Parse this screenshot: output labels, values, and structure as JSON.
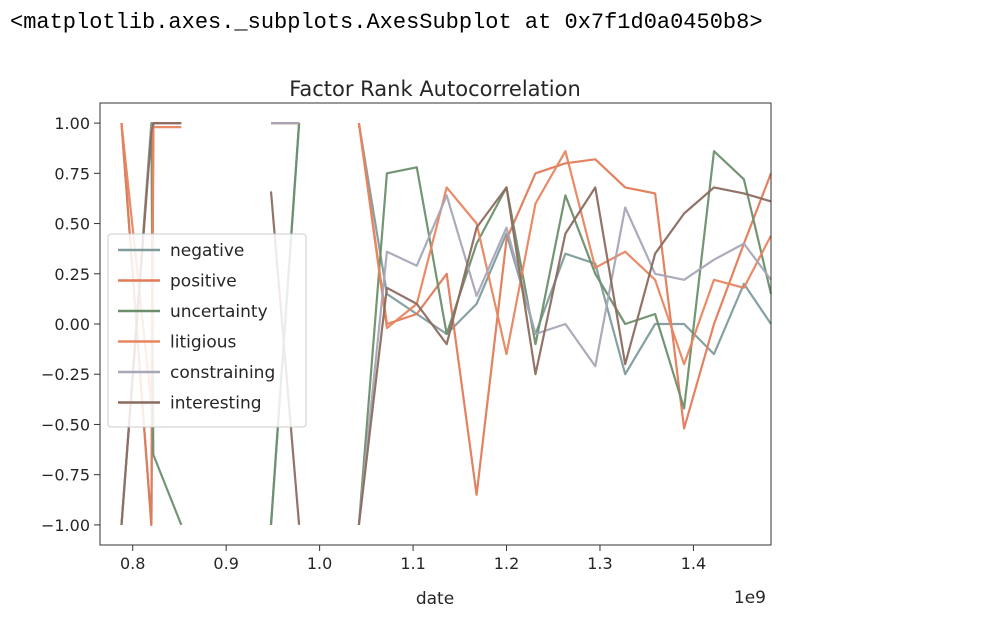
{
  "repr_text": "<matplotlib.axes._subplots.AxesSubplot at 0x7f1d0a0450b8>",
  "chart_data": {
    "type": "line",
    "title": "Factor Rank Autocorrelation",
    "xlabel": "date",
    "ylabel": "",
    "x_offset_label": "1e9",
    "xlim": [
      0.765,
      1.483
    ],
    "ylim": [
      -1.1,
      1.1
    ],
    "xticks": [
      0.8,
      0.9,
      1.0,
      1.1,
      1.2,
      1.3,
      1.4
    ],
    "xtick_labels": [
      "0.8",
      "0.9",
      "1.0",
      "1.1",
      "1.2",
      "1.3",
      "1.4"
    ],
    "yticks": [
      1.0,
      0.75,
      0.5,
      0.25,
      0.0,
      -0.25,
      -0.5,
      -0.75,
      -1.0
    ],
    "ytick_labels": [
      "1.00",
      "0.75",
      "0.50",
      "0.25",
      "0.00",
      "−0.25",
      "−0.50",
      "−0.75",
      "−1.00"
    ],
    "legend_position": "center-left",
    "grid": false,
    "series": [
      {
        "name": "negative",
        "color": "#7f9c9c",
        "segments": [
          [
            [
              0.788,
              1.0
            ],
            [
              0.82,
              -1.0
            ],
            [
              0.822,
              1.0
            ],
            [
              0.852,
              1.0
            ]
          ],
          [
            [
              0.948,
              -1.0
            ],
            [
              0.978,
              1.0
            ]
          ],
          [
            [
              1.042,
              1.0
            ],
            [
              1.072,
              0.15
            ],
            [
              1.104,
              0.05
            ],
            [
              1.136,
              -0.05
            ],
            [
              1.168,
              0.1
            ],
            [
              1.2,
              0.45
            ],
            [
              1.231,
              -0.05
            ],
            [
              1.263,
              0.35
            ],
            [
              1.295,
              0.3
            ],
            [
              1.327,
              -0.25
            ],
            [
              1.359,
              0.0
            ],
            [
              1.39,
              0.0
            ],
            [
              1.422,
              -0.15
            ],
            [
              1.454,
              0.2
            ],
            [
              1.483,
              0.0
            ]
          ]
        ]
      },
      {
        "name": "positive",
        "color": "#e07b59",
        "segments": [
          [
            [
              0.788,
              1.0
            ],
            [
              0.82,
              -1.0
            ],
            [
              0.822,
              1.0
            ],
            [
              0.852,
              1.0
            ]
          ],
          [
            [
              0.948,
              1.0
            ],
            [
              0.978,
              1.0
            ]
          ],
          [
            [
              1.042,
              1.0
            ],
            [
              1.072,
              0.0
            ],
            [
              1.104,
              0.05
            ],
            [
              1.136,
              0.25
            ],
            [
              1.168,
              -0.85
            ],
            [
              1.2,
              0.42
            ],
            [
              1.231,
              0.75
            ],
            [
              1.263,
              0.8
            ],
            [
              1.295,
              0.82
            ],
            [
              1.327,
              0.68
            ],
            [
              1.359,
              0.65
            ],
            [
              1.39,
              -0.52
            ],
            [
              1.422,
              0.0
            ],
            [
              1.454,
              0.4
            ],
            [
              1.483,
              0.75
            ]
          ]
        ]
      },
      {
        "name": "uncertainty",
        "color": "#6b8f6b",
        "segments": [
          [
            [
              0.788,
              -1.0
            ],
            [
              0.82,
              1.0
            ],
            [
              0.822,
              -0.65
            ],
            [
              0.852,
              -1.0
            ]
          ],
          [
            [
              0.948,
              -1.0
            ],
            [
              0.978,
              1.0
            ]
          ],
          [
            [
              1.042,
              -1.0
            ],
            [
              1.072,
              0.75
            ],
            [
              1.104,
              0.78
            ],
            [
              1.136,
              -0.05
            ],
            [
              1.168,
              0.4
            ],
            [
              1.2,
              0.68
            ],
            [
              1.231,
              -0.1
            ],
            [
              1.263,
              0.64
            ],
            [
              1.295,
              0.25
            ],
            [
              1.327,
              0.0
            ],
            [
              1.359,
              0.05
            ],
            [
              1.39,
              -0.42
            ],
            [
              1.422,
              0.86
            ],
            [
              1.454,
              0.72
            ],
            [
              1.483,
              0.15
            ]
          ]
        ]
      },
      {
        "name": "litigious",
        "color": "#e8855f",
        "segments": [
          [
            [
              0.788,
              1.0
            ],
            [
              0.82,
              -0.4
            ],
            [
              0.822,
              0.98
            ],
            [
              0.852,
              0.98
            ]
          ],
          [
            [
              0.948,
              1.0
            ],
            [
              0.978,
              1.0
            ]
          ],
          [
            [
              1.042,
              1.0
            ],
            [
              1.072,
              -0.02
            ],
            [
              1.104,
              0.1
            ],
            [
              1.136,
              0.68
            ],
            [
              1.168,
              0.5
            ],
            [
              1.2,
              -0.15
            ],
            [
              1.231,
              0.6
            ],
            [
              1.263,
              0.86
            ],
            [
              1.295,
              0.28
            ],
            [
              1.327,
              0.36
            ],
            [
              1.359,
              0.22
            ],
            [
              1.39,
              -0.2
            ],
            [
              1.422,
              0.22
            ],
            [
              1.454,
              0.18
            ],
            [
              1.483,
              0.44
            ]
          ]
        ]
      },
      {
        "name": "constraining",
        "color": "#a7a7b8",
        "segments": [
          [
            [
              0.788,
              -1.0
            ],
            [
              0.82,
              0.98
            ],
            [
              0.822,
              1.0
            ],
            [
              0.852,
              1.0
            ]
          ],
          [
            [
              0.948,
              1.0
            ],
            [
              0.978,
              1.0
            ]
          ],
          [
            [
              1.042,
              -1.0
            ],
            [
              1.072,
              0.36
            ],
            [
              1.104,
              0.29
            ],
            [
              1.136,
              0.64
            ],
            [
              1.168,
              0.14
            ],
            [
              1.2,
              0.48
            ],
            [
              1.231,
              -0.05
            ],
            [
              1.263,
              0.0
            ],
            [
              1.295,
              -0.21
            ],
            [
              1.327,
              0.58
            ],
            [
              1.359,
              0.25
            ],
            [
              1.39,
              0.22
            ],
            [
              1.422,
              0.32
            ],
            [
              1.454,
              0.4
            ],
            [
              1.483,
              0.22
            ]
          ]
        ]
      },
      {
        "name": "interesting",
        "color": "#8c6b5f",
        "segments": [
          [
            [
              0.788,
              -1.0
            ],
            [
              0.82,
              0.96
            ],
            [
              0.822,
              1.0
            ],
            [
              0.852,
              1.0
            ]
          ],
          [
            [
              0.948,
              0.66
            ],
            [
              0.978,
              -1.0
            ]
          ],
          [
            [
              1.042,
              -1.0
            ],
            [
              1.072,
              0.18
            ],
            [
              1.104,
              0.1
            ],
            [
              1.136,
              -0.1
            ],
            [
              1.168,
              0.48
            ],
            [
              1.2,
              0.68
            ],
            [
              1.231,
              -0.25
            ],
            [
              1.263,
              0.45
            ],
            [
              1.295,
              0.68
            ],
            [
              1.327,
              -0.2
            ],
            [
              1.359,
              0.35
            ],
            [
              1.39,
              0.55
            ],
            [
              1.422,
              0.68
            ],
            [
              1.454,
              0.65
            ],
            [
              1.483,
              0.61
            ]
          ]
        ]
      }
    ]
  }
}
